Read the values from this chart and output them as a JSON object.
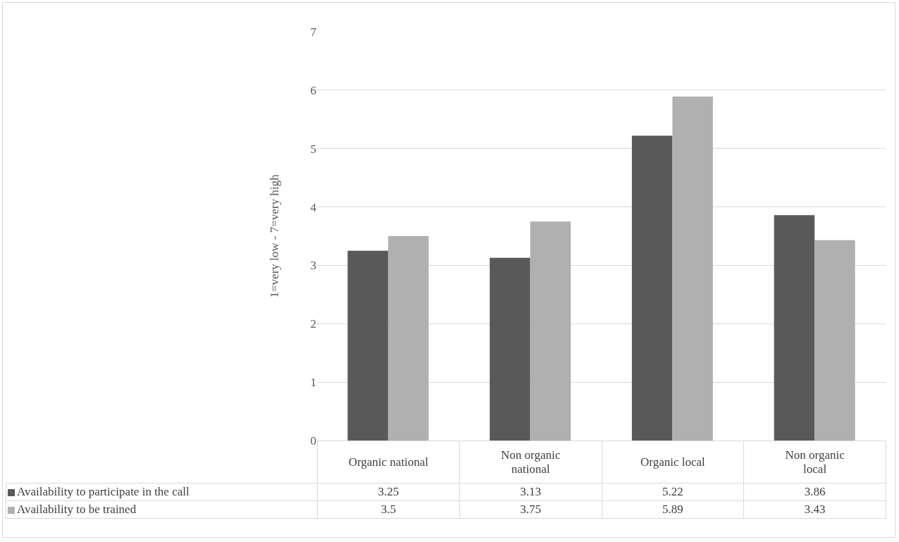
{
  "chart_data": {
    "type": "bar",
    "ylabel": "1=very low - 7=very high",
    "categories": [
      "Organic national",
      "Non organic national",
      "Organic local",
      "Non organic local"
    ],
    "series": [
      {
        "name": "Availability to participate in the call",
        "color": "#595959",
        "values": [
          3.25,
          3.13,
          5.22,
          3.86
        ]
      },
      {
        "name": "Availability to be trained",
        "color": "#b0b0b0",
        "values": [
          3.5,
          3.75,
          5.89,
          3.43
        ]
      }
    ],
    "ylim": [
      0,
      7
    ],
    "yticks": [
      0,
      1,
      2,
      3,
      4,
      5,
      6,
      7
    ],
    "grid": "y",
    "legend": "bottom",
    "data_labels": true
  }
}
